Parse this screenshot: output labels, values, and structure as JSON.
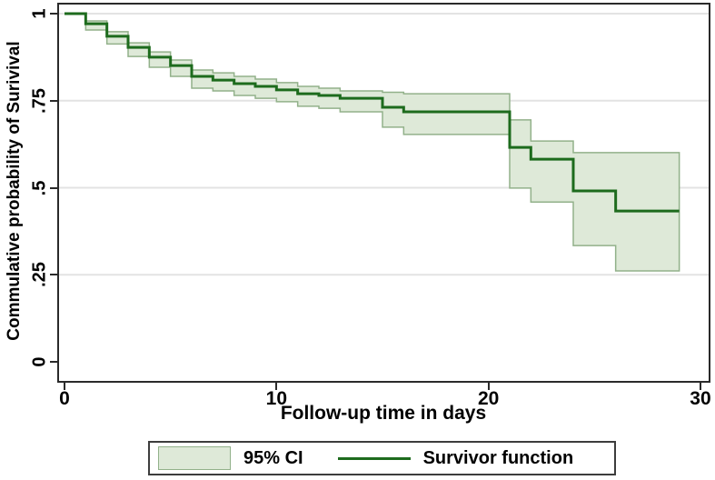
{
  "colors": {
    "line": "#1d6b1d",
    "band_fill": "#dee9d8",
    "band_edge": "#92b18a",
    "grid": "#e3e3e3",
    "axis": "#2a2a2a",
    "text": "#000000"
  },
  "y_axis": {
    "title": "Commulative probability of Surivival",
    "tick_labels": [
      "0",
      ".25",
      ".5",
      ".75",
      "1"
    ],
    "tick_values": [
      0,
      0.25,
      0.5,
      0.75,
      1
    ]
  },
  "x_axis": {
    "title": "Follow-up time in days",
    "tick_labels": [
      "0",
      "10",
      "20",
      "30"
    ],
    "tick_values": [
      0,
      10,
      20,
      30
    ]
  },
  "legend": {
    "ci_label": "95% CI",
    "line_label": "Survivor function"
  },
  "chart_data": {
    "type": "line",
    "subtype": "kaplan-meier-step",
    "title": "",
    "xlabel": "Follow-up time in days",
    "ylabel": "Commulative probability of Surivival",
    "xlim": [
      0,
      30
    ],
    "ylim": [
      0,
      1
    ],
    "grid": "horizontal",
    "legend_position": "bottom-center",
    "end_time": 29,
    "series": [
      {
        "name": "Survivor function",
        "style": "step",
        "points_t_s": [
          [
            0,
            1.0
          ],
          [
            1,
            0.971
          ],
          [
            2,
            0.935
          ],
          [
            3,
            0.903
          ],
          [
            4,
            0.875
          ],
          [
            5,
            0.851
          ],
          [
            6,
            0.82
          ],
          [
            7,
            0.809
          ],
          [
            8,
            0.799
          ],
          [
            9,
            0.791
          ],
          [
            10,
            0.781
          ],
          [
            11,
            0.77
          ],
          [
            12,
            0.765
          ],
          [
            13,
            0.757
          ],
          [
            15,
            0.731
          ],
          [
            16,
            0.718
          ],
          [
            21,
            0.616
          ],
          [
            22,
            0.582
          ],
          [
            24,
            0.491
          ],
          [
            26,
            0.433
          ]
        ]
      },
      {
        "name": "95% CI",
        "style": "step-band",
        "points_t_lo_hi": [
          [
            1,
            0.953,
            0.979
          ],
          [
            2,
            0.913,
            0.948
          ],
          [
            3,
            0.877,
            0.916
          ],
          [
            4,
            0.846,
            0.89
          ],
          [
            5,
            0.82,
            0.867
          ],
          [
            6,
            0.786,
            0.838
          ],
          [
            7,
            0.778,
            0.83
          ],
          [
            8,
            0.765,
            0.82
          ],
          [
            9,
            0.757,
            0.812
          ],
          [
            10,
            0.747,
            0.802
          ],
          [
            11,
            0.734,
            0.791
          ],
          [
            12,
            0.728,
            0.786
          ],
          [
            13,
            0.718,
            0.778
          ],
          [
            15,
            0.674,
            0.774
          ],
          [
            16,
            0.653,
            0.77
          ],
          [
            21,
            0.499,
            0.695
          ],
          [
            22,
            0.459,
            0.634
          ],
          [
            24,
            0.334,
            0.601
          ],
          [
            26,
            0.261,
            0.601
          ]
        ]
      }
    ]
  }
}
